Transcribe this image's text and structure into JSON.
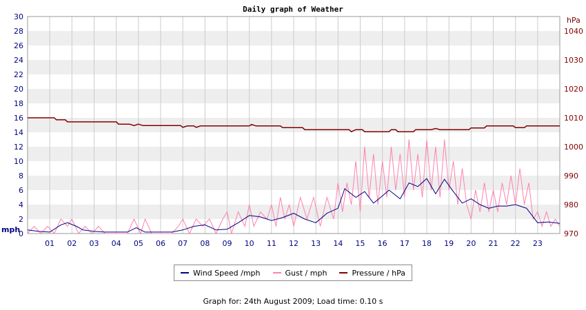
{
  "chart_data": {
    "type": "line",
    "title": "Daily graph of Weather",
    "y_left": {
      "label": "mph",
      "ticks": [
        "0",
        "2",
        "4",
        "6",
        "8",
        "10",
        "12",
        "14",
        "16",
        "18",
        "20",
        "22",
        "24",
        "26",
        "28",
        "30"
      ],
      "range": [
        0,
        30
      ]
    },
    "y_right": {
      "label": "hPa",
      "ticks": [
        "970",
        "980",
        "990",
        "1000",
        "1010",
        "1020",
        "1030",
        "1040"
      ],
      "range": [
        970,
        1045
      ]
    },
    "x": {
      "ticks": [
        "01",
        "02",
        "03",
        "04",
        "05",
        "06",
        "07",
        "08",
        "09",
        "10",
        "11",
        "12",
        "13",
        "14",
        "15",
        "16",
        "17",
        "18",
        "19",
        "20",
        "21",
        "22",
        "23"
      ],
      "range": [
        0,
        24
      ],
      "unit": "hour"
    },
    "grid": true,
    "series": [
      {
        "name": "Wind Speed /mph",
        "axis": "left",
        "color": "#000080",
        "points": [
          [
            0,
            0.5
          ],
          [
            0.5,
            0.3
          ],
          [
            1,
            0.2
          ],
          [
            1.5,
            1.2
          ],
          [
            1.8,
            1.5
          ],
          [
            2.2,
            1.0
          ],
          [
            2.5,
            0.5
          ],
          [
            3,
            0.3
          ],
          [
            3.5,
            0.2
          ],
          [
            4,
            0.2
          ],
          [
            4.5,
            0.2
          ],
          [
            4.9,
            0.8
          ],
          [
            5.3,
            0.2
          ],
          [
            6,
            0.2
          ],
          [
            6.5,
            0.2
          ],
          [
            7,
            0.5
          ],
          [
            7.5,
            1.0
          ],
          [
            8,
            1.2
          ],
          [
            8.5,
            0.5
          ],
          [
            9,
            0.6
          ],
          [
            9.5,
            1.5
          ],
          [
            10,
            2.5
          ],
          [
            10.5,
            2.3
          ],
          [
            11,
            1.8
          ],
          [
            11.5,
            2.2
          ],
          [
            12,
            2.8
          ],
          [
            12.5,
            2.0
          ],
          [
            13,
            1.5
          ],
          [
            13.5,
            2.8
          ],
          [
            14,
            3.5
          ],
          [
            14.3,
            6.2
          ],
          [
            14.8,
            5.0
          ],
          [
            15.2,
            5.8
          ],
          [
            15.6,
            4.2
          ],
          [
            16,
            5.2
          ],
          [
            16.3,
            6.0
          ],
          [
            16.8,
            4.8
          ],
          [
            17.2,
            7.0
          ],
          [
            17.6,
            6.5
          ],
          [
            18,
            7.6
          ],
          [
            18.4,
            5.5
          ],
          [
            18.8,
            7.5
          ],
          [
            19.2,
            5.8
          ],
          [
            19.6,
            4.2
          ],
          [
            20,
            4.8
          ],
          [
            20.4,
            4.0
          ],
          [
            20.8,
            3.5
          ],
          [
            21.2,
            3.8
          ],
          [
            21.6,
            3.8
          ],
          [
            22,
            4.0
          ],
          [
            22.5,
            3.5
          ],
          [
            23,
            1.5
          ],
          [
            23.5,
            1.6
          ],
          [
            24,
            1.4
          ]
        ]
      },
      {
        "name": "Gust / mph",
        "axis": "left",
        "color": "#ff80b0",
        "points": [
          [
            0,
            0
          ],
          [
            0.3,
            1
          ],
          [
            0.6,
            0
          ],
          [
            0.9,
            1
          ],
          [
            1.2,
            0
          ],
          [
            1.5,
            2
          ],
          [
            1.8,
            1
          ],
          [
            2,
            2
          ],
          [
            2.3,
            0
          ],
          [
            2.6,
            1
          ],
          [
            2.9,
            0
          ],
          [
            3.2,
            1
          ],
          [
            3.5,
            0
          ],
          [
            4,
            0
          ],
          [
            4.5,
            0
          ],
          [
            4.8,
            2
          ],
          [
            5.1,
            0
          ],
          [
            5.3,
            2
          ],
          [
            5.6,
            0
          ],
          [
            6,
            0
          ],
          [
            6.5,
            0
          ],
          [
            6.8,
            1
          ],
          [
            7,
            2
          ],
          [
            7.3,
            0
          ],
          [
            7.6,
            2
          ],
          [
            7.9,
            1
          ],
          [
            8.2,
            2
          ],
          [
            8.5,
            0
          ],
          [
            8.8,
            2
          ],
          [
            9,
            3
          ],
          [
            9.2,
            0
          ],
          [
            9.5,
            3
          ],
          [
            9.8,
            1
          ],
          [
            10,
            4
          ],
          [
            10.2,
            1
          ],
          [
            10.5,
            3
          ],
          [
            10.8,
            2
          ],
          [
            11,
            4
          ],
          [
            11.2,
            1
          ],
          [
            11.4,
            5
          ],
          [
            11.6,
            2
          ],
          [
            11.8,
            4
          ],
          [
            12,
            1
          ],
          [
            12.3,
            5
          ],
          [
            12.6,
            2
          ],
          [
            12.9,
            5
          ],
          [
            13.2,
            1
          ],
          [
            13.5,
            5
          ],
          [
            13.8,
            2
          ],
          [
            14,
            7
          ],
          [
            14.2,
            3
          ],
          [
            14.4,
            7
          ],
          [
            14.6,
            4
          ],
          [
            14.8,
            10
          ],
          [
            15,
            3
          ],
          [
            15.2,
            12
          ],
          [
            15.4,
            5
          ],
          [
            15.6,
            11
          ],
          [
            15.8,
            4
          ],
          [
            16,
            10
          ],
          [
            16.2,
            5
          ],
          [
            16.4,
            12
          ],
          [
            16.6,
            6
          ],
          [
            16.8,
            11
          ],
          [
            17,
            5
          ],
          [
            17.2,
            13
          ],
          [
            17.4,
            6
          ],
          [
            17.6,
            11
          ],
          [
            17.8,
            5
          ],
          [
            18,
            13
          ],
          [
            18.2,
            6
          ],
          [
            18.4,
            12
          ],
          [
            18.6,
            5
          ],
          [
            18.8,
            13
          ],
          [
            19,
            6
          ],
          [
            19.2,
            10
          ],
          [
            19.4,
            4
          ],
          [
            19.6,
            9
          ],
          [
            19.8,
            4
          ],
          [
            20,
            2
          ],
          [
            20.2,
            6
          ],
          [
            20.4,
            3
          ],
          [
            20.6,
            7
          ],
          [
            20.8,
            3
          ],
          [
            21,
            6
          ],
          [
            21.2,
            3
          ],
          [
            21.4,
            7
          ],
          [
            21.6,
            4
          ],
          [
            21.8,
            8
          ],
          [
            22,
            4
          ],
          [
            22.2,
            9
          ],
          [
            22.4,
            4
          ],
          [
            22.6,
            7
          ],
          [
            22.8,
            2
          ],
          [
            23,
            3
          ],
          [
            23.2,
            1
          ],
          [
            23.4,
            3
          ],
          [
            23.6,
            1
          ],
          [
            23.8,
            2
          ],
          [
            24,
            1
          ]
        ]
      },
      {
        "name": "Pressure / hPa",
        "axis": "right",
        "color": "#800000",
        "points": [
          [
            0,
            1010
          ],
          [
            1.2,
            1010
          ],
          [
            1.3,
            1009.3
          ],
          [
            1.7,
            1009.3
          ],
          [
            1.8,
            1008.6
          ],
          [
            4.0,
            1008.6
          ],
          [
            4.1,
            1007.8
          ],
          [
            4.6,
            1007.8
          ],
          [
            4.8,
            1007.3
          ],
          [
            5.0,
            1007.8
          ],
          [
            5.2,
            1007.3
          ],
          [
            6.9,
            1007.3
          ],
          [
            7.0,
            1006.7
          ],
          [
            7.2,
            1007.2
          ],
          [
            7.5,
            1007.2
          ],
          [
            7.6,
            1006.7
          ],
          [
            7.8,
            1007.2
          ],
          [
            10.0,
            1007.2
          ],
          [
            10.1,
            1007.7
          ],
          [
            10.3,
            1007.2
          ],
          [
            11.4,
            1007.2
          ],
          [
            11.5,
            1006.6
          ],
          [
            12.4,
            1006.6
          ],
          [
            12.5,
            1005.9
          ],
          [
            14.5,
            1005.9
          ],
          [
            14.6,
            1005.2
          ],
          [
            14.8,
            1005.9
          ],
          [
            15.1,
            1005.9
          ],
          [
            15.2,
            1005.2
          ],
          [
            16.3,
            1005.2
          ],
          [
            16.4,
            1005.9
          ],
          [
            16.6,
            1005.9
          ],
          [
            16.7,
            1005.2
          ],
          [
            17.4,
            1005.2
          ],
          [
            17.5,
            1005.9
          ],
          [
            18.2,
            1005.9
          ],
          [
            18.4,
            1006.3
          ],
          [
            18.6,
            1005.9
          ],
          [
            19.9,
            1005.9
          ],
          [
            20.0,
            1006.5
          ],
          [
            20.6,
            1006.5
          ],
          [
            20.7,
            1007.2
          ],
          [
            21.9,
            1007.2
          ],
          [
            22.0,
            1006.6
          ],
          [
            22.4,
            1006.6
          ],
          [
            22.5,
            1007.2
          ],
          [
            24,
            1007.2
          ]
        ]
      }
    ]
  },
  "legend": {
    "wind_label": "Wind Speed /mph",
    "gust_label": "Gust / mph",
    "pressure_label": "Pressure / hPa",
    "wind_color": "#000080",
    "gust_color": "#ff80b0",
    "pressure_color": "#800000"
  },
  "footer": "Graph for: 24th August 2009; Load time: 0.10 s"
}
